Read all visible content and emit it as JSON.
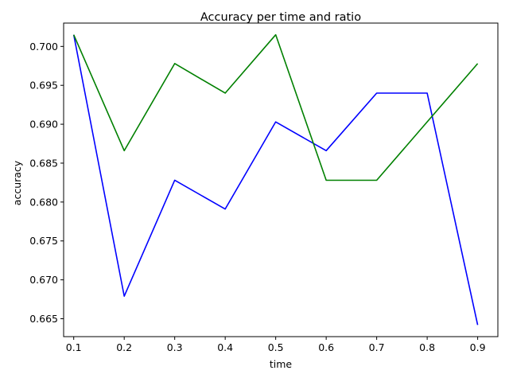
{
  "chart_data": {
    "type": "line",
    "title": "Accuracy per time and ratio",
    "xlabel": "time",
    "ylabel": "accuracy",
    "x": [
      0.1,
      0.2,
      0.3,
      0.4,
      0.5,
      0.6,
      0.7,
      0.8,
      0.9
    ],
    "xticks": [
      "0.1",
      "0.2",
      "0.3",
      "0.4",
      "0.5",
      "0.6",
      "0.7",
      "0.8",
      "0.9"
    ],
    "yticks": [
      "0.665",
      "0.670",
      "0.675",
      "0.680",
      "0.685",
      "0.690",
      "0.695",
      "0.700"
    ],
    "xlim": [
      0.08,
      0.94
    ],
    "ylim": [
      0.6627,
      0.703
    ],
    "grid": false,
    "legend": "none",
    "series": [
      {
        "color": "#0000ff",
        "values": [
          0.7015,
          0.6679,
          0.6828,
          0.6791,
          0.6903,
          0.6866,
          0.694,
          0.694,
          0.6642
        ]
      },
      {
        "color": "#008000",
        "values": [
          0.7015,
          0.6866,
          0.6978,
          0.694,
          0.7015,
          0.6828,
          0.6828,
          0.6903,
          0.6978
        ]
      }
    ]
  }
}
